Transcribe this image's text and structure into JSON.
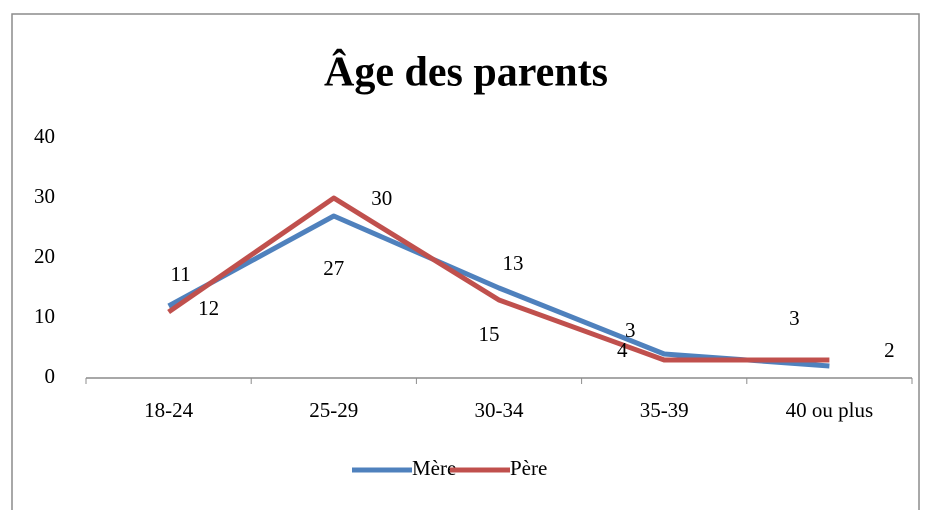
{
  "chart_data": {
    "type": "line",
    "title": "Âge des parents",
    "categories": [
      "18-24",
      "25-29",
      "30-34",
      "35-39",
      "40 ou plus"
    ],
    "series": [
      {
        "name": "Mère",
        "color": "#4f81bd",
        "label_color": "#0000ff",
        "values": [
          12,
          27,
          15,
          4,
          2
        ]
      },
      {
        "name": "Père",
        "color": "#c0504d",
        "label_color": "#ff0000",
        "values": [
          11,
          30,
          13,
          3,
          3
        ]
      }
    ],
    "ylim": [
      0,
      40
    ],
    "yticks": [
      0,
      10,
      20,
      30,
      40
    ],
    "grid": false,
    "legend": "bottom"
  }
}
